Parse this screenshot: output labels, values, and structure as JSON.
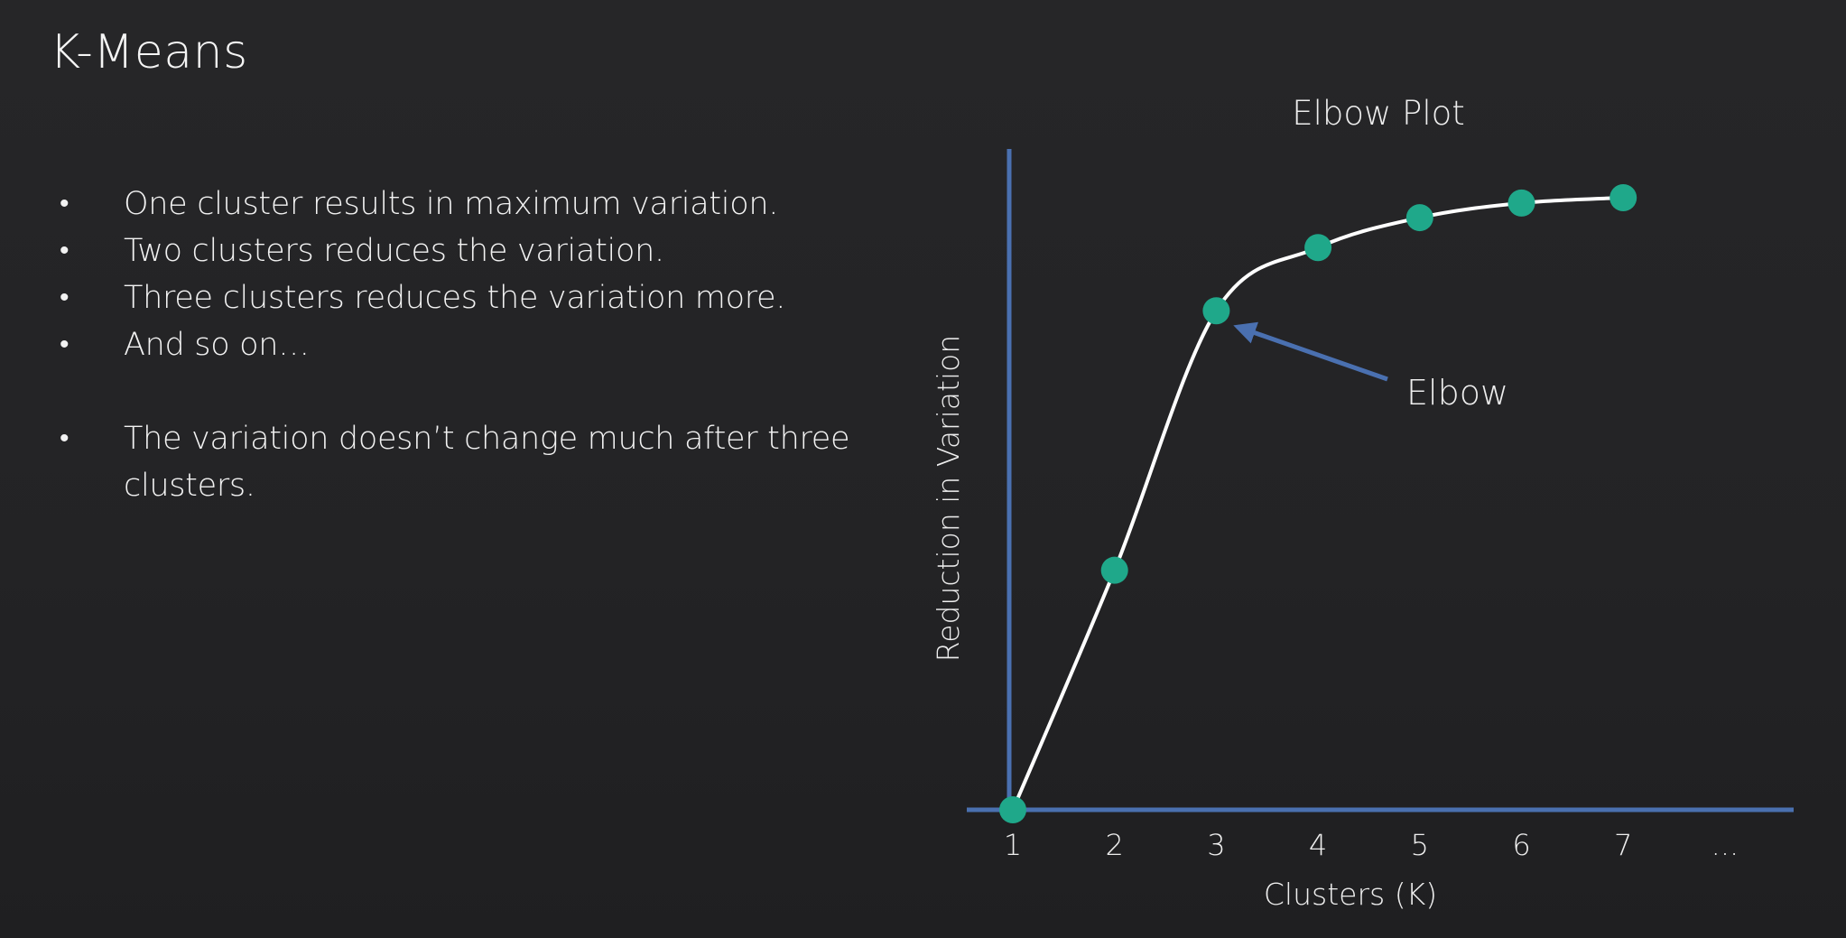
{
  "slide": {
    "title": "K-Means"
  },
  "bullets": [
    "One cluster results in maximum variation.",
    "Two clusters reduces the variation.",
    "Three clusters reduces the variation more.",
    "And so on…",
    "The variation doesn’t change much after three clusters."
  ],
  "colors": {
    "background": "#232325",
    "axis": "#4a70b0",
    "curve": "#ffffff",
    "point": "#1fa88a",
    "arrow": "#4a70b0"
  },
  "chart_data": {
    "type": "line",
    "title": "Elbow Plot",
    "xlabel": "Clusters (K)",
    "ylabel": "Reduction in Variation",
    "categories": [
      "1",
      "2",
      "3",
      "4",
      "5",
      "6",
      "7",
      "..."
    ],
    "x": [
      1,
      2,
      3,
      4,
      5,
      6,
      7
    ],
    "values": [
      0,
      36,
      75,
      84.5,
      89,
      91.2,
      92
    ],
    "ylim": [
      0,
      100
    ],
    "xlim": [
      1,
      8
    ],
    "grid": false,
    "annotations": [
      {
        "text": "Elbow",
        "points_to_x": 3
      }
    ]
  }
}
